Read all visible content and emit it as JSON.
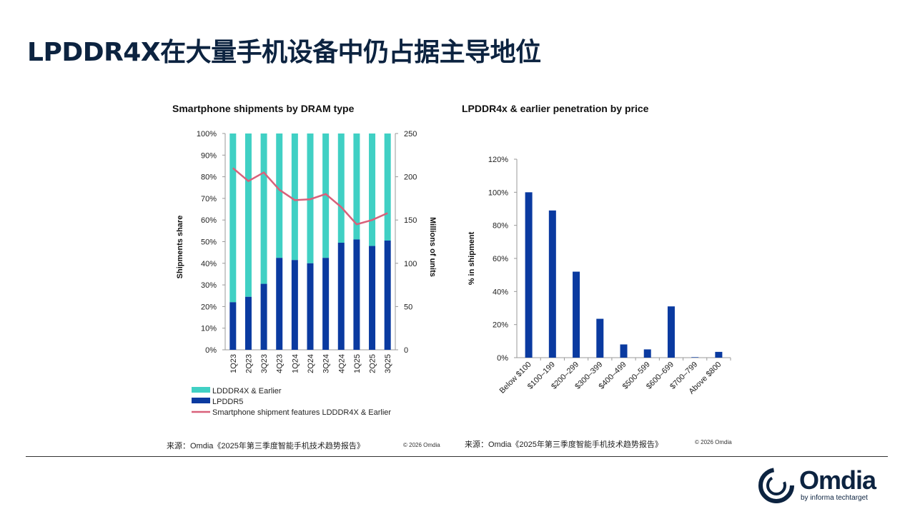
{
  "slide_title": "LPDDR4X在大量手机设备中仍占据主导地位",
  "colors": {
    "title": "#0c2340",
    "lpddr4x": "#40d0c4",
    "lpddr5": "#0a3aa0",
    "line": "#d9607a"
  },
  "chart_data": [
    {
      "type": "bar",
      "stacked": true,
      "title": "Smartphone shipments by DRAM type",
      "xlabel": "",
      "ylabel": "Shipments share",
      "y2label": "Millions of units",
      "ylim": [
        0,
        100
      ],
      "y2lim": [
        0,
        250
      ],
      "yticks": [
        "0%",
        "10%",
        "20%",
        "30%",
        "40%",
        "50%",
        "60%",
        "70%",
        "80%",
        "90%",
        "100%"
      ],
      "y2ticks": [
        "0",
        "50",
        "100",
        "150",
        "200",
        "250"
      ],
      "categories": [
        "1Q23",
        "2Q23",
        "3Q23",
        "4Q23",
        "1Q24",
        "2Q24",
        "3Q24",
        "4Q24",
        "1Q25",
        "2Q25",
        "3Q25"
      ],
      "series": [
        {
          "name": "LPDDR5",
          "type": "bar",
          "values": [
            22,
            24.5,
            30.5,
            42.5,
            41.5,
            40,
            42.5,
            49.5,
            51,
            48,
            50.5
          ]
        },
        {
          "name": "LDDDR4X & Earlier",
          "type": "bar",
          "values": [
            78,
            75.5,
            69.5,
            57.5,
            58.5,
            60,
            57.5,
            50.5,
            49,
            52,
            49.5
          ]
        },
        {
          "name": "Smartphone shipment features LDDDR4X & Earlier",
          "type": "line",
          "axis": "right",
          "values": [
            210,
            195,
            205,
            185,
            173,
            174,
            180,
            165,
            145,
            150,
            158
          ]
        }
      ],
      "legend": [
        "LDDDR4X & Earlier",
        "LPDDR5",
        "Smartphone shipment features LDDDR4X & Earlier"
      ],
      "legend_position": "bottom",
      "grid": false
    },
    {
      "type": "bar",
      "title": "LPDDR4x & earlier penetration by price",
      "xlabel": "",
      "ylabel": "% in shipment",
      "ylim": [
        0,
        120
      ],
      "yticks": [
        "0%",
        "20%",
        "40%",
        "60%",
        "80%",
        "100%",
        "120%"
      ],
      "categories": [
        "Below $100",
        "$100–199",
        "$200–299",
        "$300–399",
        "$400–499",
        "$500–599",
        "$600–699",
        "$700–799",
        "Above $800"
      ],
      "values": [
        100,
        89,
        52,
        23.5,
        8,
        5,
        31,
        0.3,
        3.5
      ],
      "grid": false
    }
  ],
  "footer": {
    "source_left": "来源：Omdia《2025年第三季度智能手机技术趋势报告》",
    "copyright_left": "© 2026 Omdia",
    "source_right": "来源：Omdia《2025年第三季度智能手机技术趋势报告》",
    "copyright_right": "© 2026 Omdia"
  },
  "logo": {
    "name": "Omdia",
    "tagline": "by informa techtarget"
  }
}
